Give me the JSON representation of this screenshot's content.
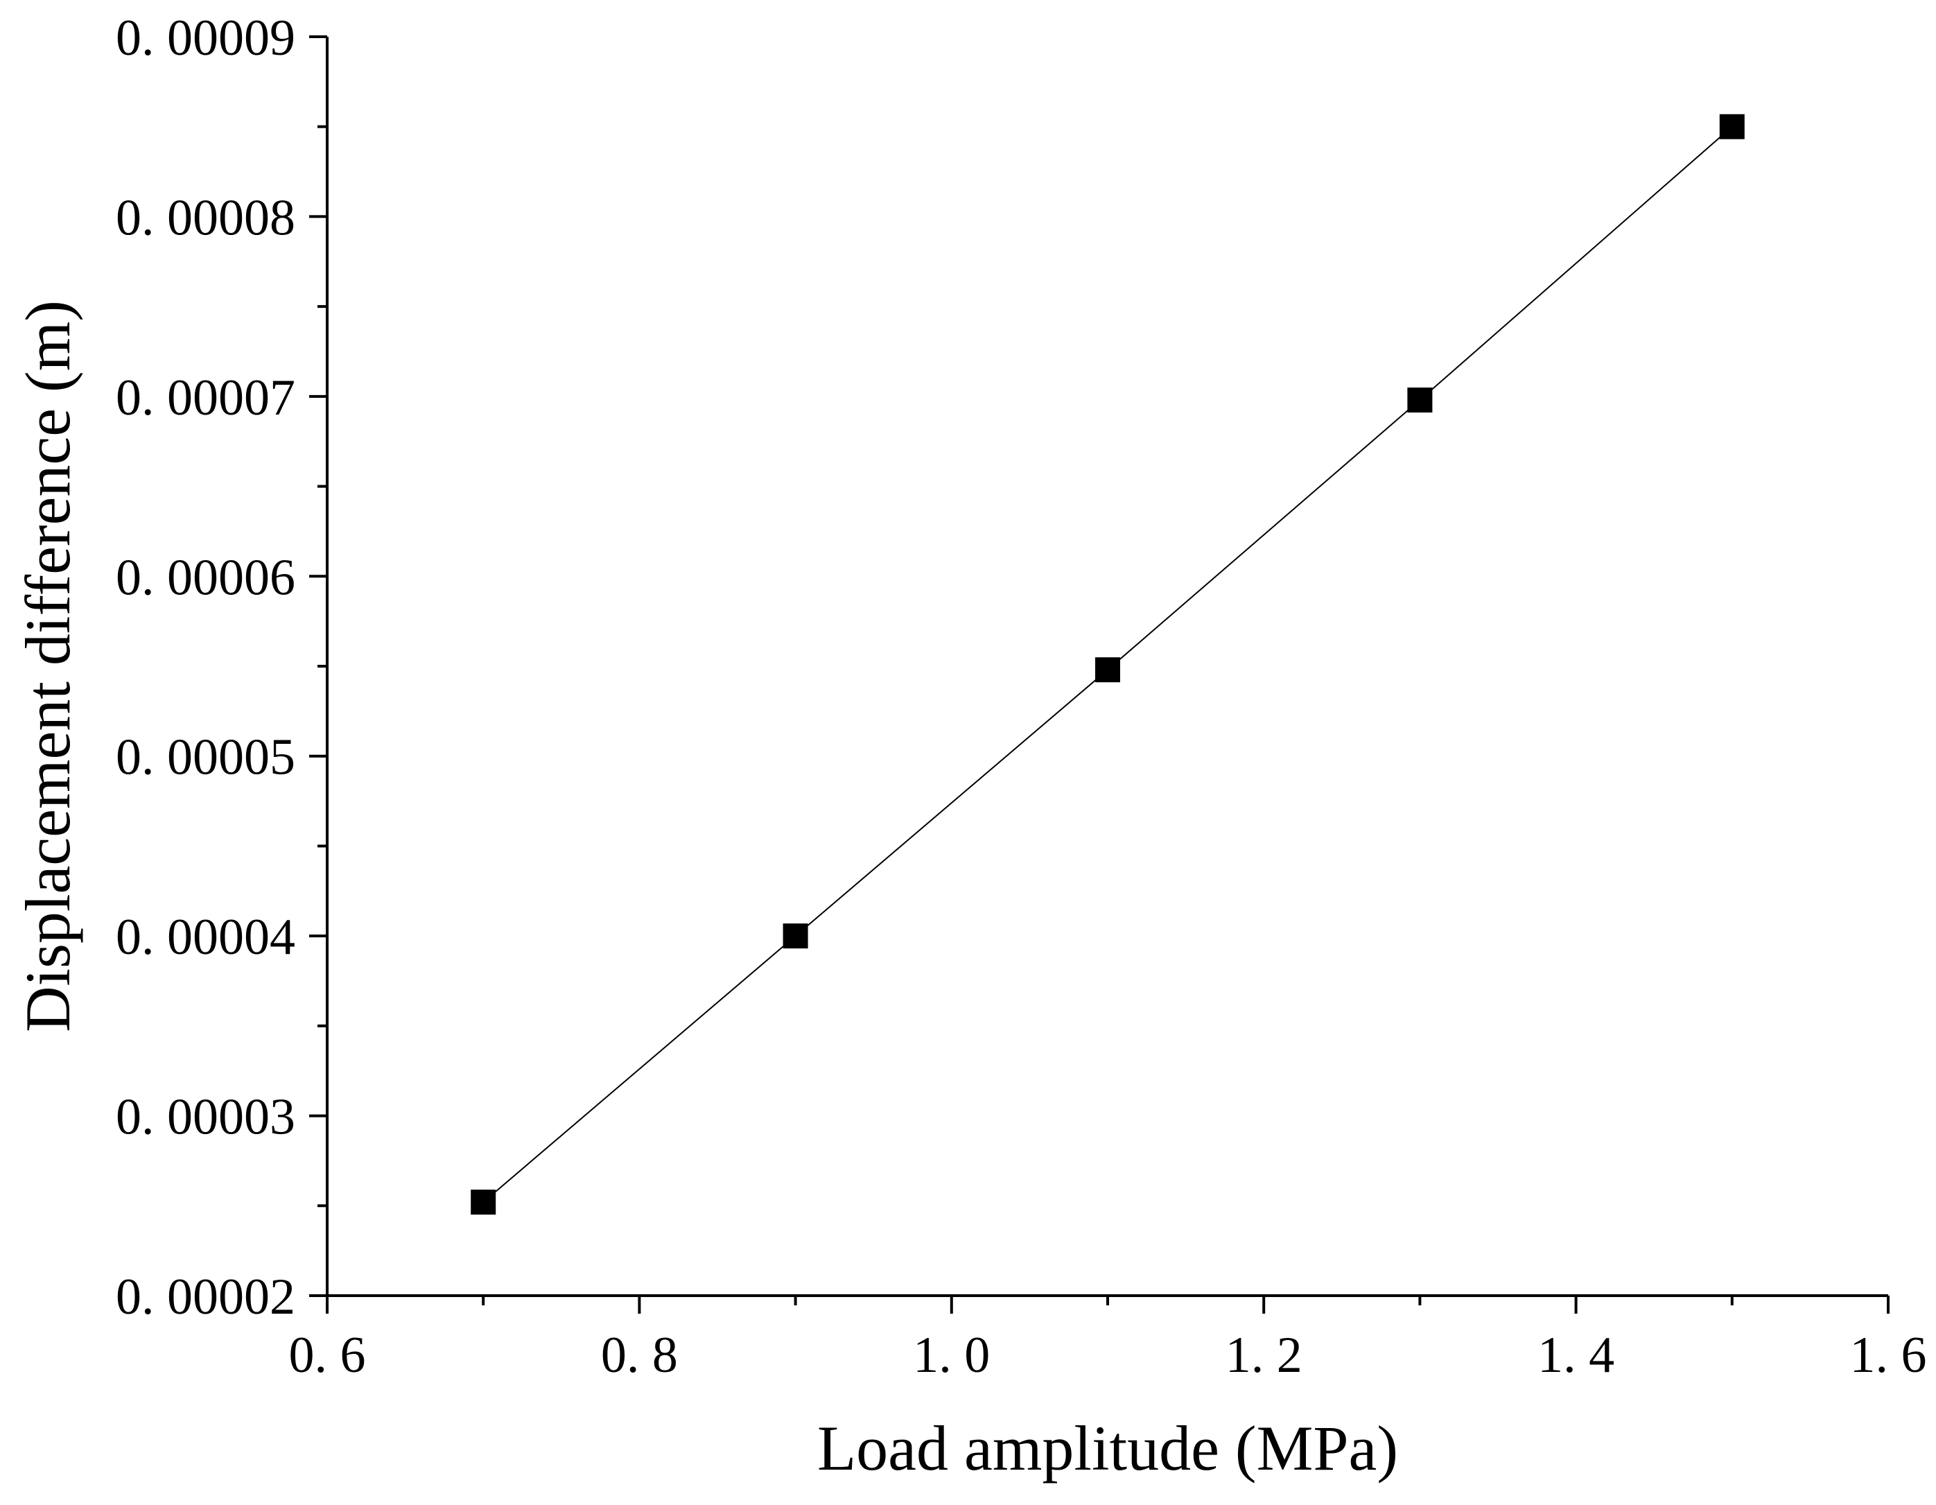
{
  "chart_data": {
    "type": "line",
    "title": "",
    "xlabel": "Load amplitude (MPa)",
    "ylabel": "Displacement difference (m)",
    "xlim": [
      0.6,
      1.6
    ],
    "ylim": [
      2e-05,
      9e-05
    ],
    "x_ticks": [
      "0. 6",
      "0. 8",
      "1. 0",
      "1. 2",
      "1. 4",
      "1. 6"
    ],
    "y_ticks": [
      "0. 00002",
      "0. 00003",
      "0. 00004",
      "0. 00005",
      "0. 00006",
      "0. 00007",
      "0. 00008",
      "0. 00009"
    ],
    "series": [
      {
        "x": [
          0.7,
          0.9,
          1.1,
          1.3,
          1.5
        ],
        "y": [
          2.52e-05,
          4e-05,
          5.48e-05,
          6.98e-05,
          8.5e-05
        ],
        "marker": "square",
        "color": "#000000"
      }
    ],
    "grid": false,
    "legend": "none"
  }
}
